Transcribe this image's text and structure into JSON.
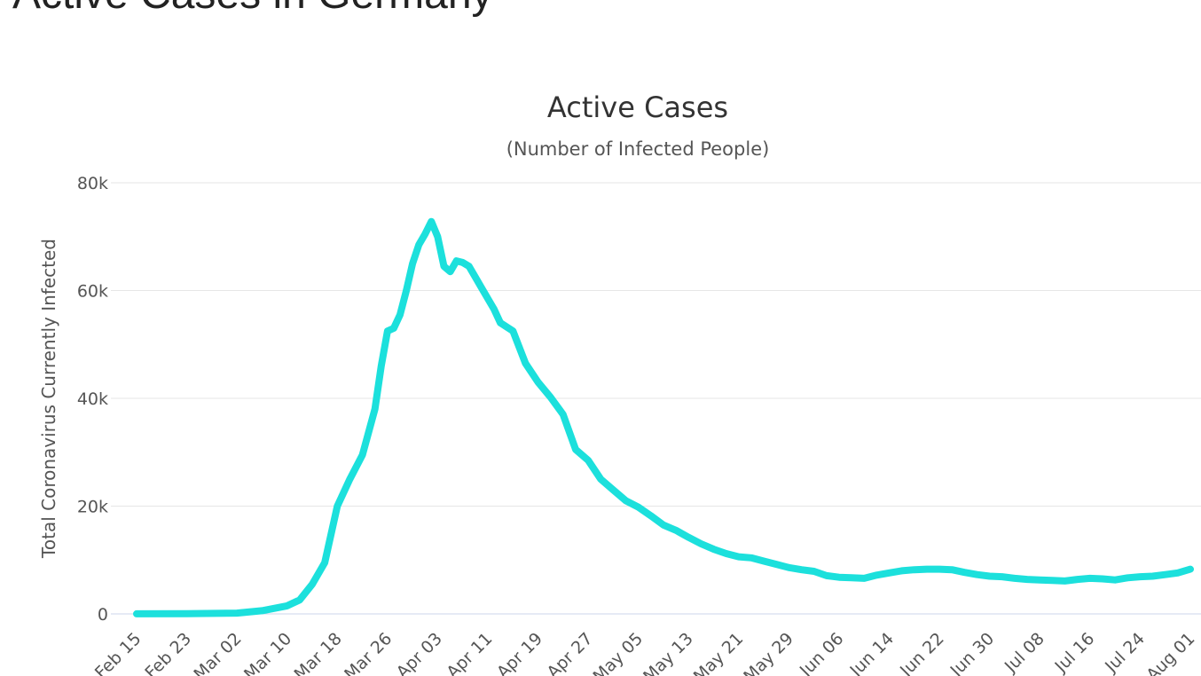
{
  "page": {
    "heading": "Active Cases in Germany"
  },
  "chart_data": {
    "type": "line",
    "title": "Active Cases",
    "subtitle": "(Number of Infected People)",
    "xlabel": "",
    "ylabel": "Total Coronavirus Currently Infected",
    "ylim": [
      0,
      80000
    ],
    "yticks": [
      0,
      20000,
      40000,
      60000,
      80000
    ],
    "ytick_labels": [
      "0",
      "20k",
      "40k",
      "60k",
      "80k"
    ],
    "xtick_labels": [
      "Feb 15",
      "Feb 23",
      "Mar 02",
      "Mar 10",
      "Mar 18",
      "Mar 26",
      "Apr 03",
      "Apr 11",
      "Apr 19",
      "Apr 27",
      "May 05",
      "May 13",
      "May 21",
      "May 29",
      "Jun 06",
      "Jun 14",
      "Jun 22",
      "Jun 30",
      "Jul 08",
      "Jul 16",
      "Jul 24",
      "Aug 01"
    ],
    "grid": true,
    "legend": false,
    "colors": {
      "line": "#1ce0dc",
      "grid": "#e6e6e6",
      "axis": "#ccd6eb"
    },
    "series": [
      {
        "x": [
          "Feb 15",
          "Feb 23",
          "Mar 02",
          "Mar 06",
          "Mar 10",
          "Mar 12",
          "Mar 14",
          "Mar 16",
          "Mar 18",
          "Mar 20",
          "Mar 22",
          "Mar 24",
          "Mar 25",
          "Mar 26",
          "Mar 27",
          "Mar 28",
          "Mar 29",
          "Mar 30",
          "Mar 31",
          "Apr 01",
          "Apr 02",
          "Apr 03",
          "Apr 04",
          "Apr 05",
          "Apr 06",
          "Apr 07",
          "Apr 08",
          "Apr 09",
          "Apr 10",
          "Apr 11",
          "Apr 12",
          "Apr 13",
          "Apr 15",
          "Apr 17",
          "Apr 19",
          "Apr 21",
          "Apr 23",
          "Apr 25",
          "Apr 27",
          "Apr 29",
          "May 01",
          "May 03",
          "May 05",
          "May 07",
          "May 09",
          "May 11",
          "May 13",
          "May 15",
          "May 17",
          "May 19",
          "May 21",
          "May 23",
          "May 25",
          "May 27",
          "May 29",
          "May 31",
          "Jun 02",
          "Jun 04",
          "Jun 06",
          "Jun 08",
          "Jun 10",
          "Jun 12",
          "Jun 14",
          "Jun 16",
          "Jun 18",
          "Jun 20",
          "Jun 22",
          "Jun 24",
          "Jun 26",
          "Jun 28",
          "Jun 30",
          "Jul 02",
          "Jul 04",
          "Jul 06",
          "Jul 08",
          "Jul 10",
          "Jul 12",
          "Jul 14",
          "Jul 16",
          "Jul 18",
          "Jul 20",
          "Jul 22",
          "Jul 24",
          "Jul 26",
          "Jul 28",
          "Jul 30",
          "Aug 01"
        ],
        "values": [
          16,
          30,
          150,
          600,
          1500,
          2600,
          5500,
          9500,
          20000,
          25000,
          29500,
          38000,
          46000,
          52500,
          53000,
          55500,
          60000,
          65000,
          68500,
          70500,
          72800,
          70000,
          64500,
          63500,
          65500,
          65200,
          64500,
          62500,
          60500,
          58500,
          56500,
          54000,
          52500,
          46500,
          43000,
          40200,
          37000,
          30500,
          28500,
          25000,
          23000,
          21000,
          19800,
          18200,
          16500,
          15500,
          14200,
          13000,
          12000,
          11200,
          10600,
          10400,
          9800,
          9200,
          8600,
          8200,
          7900,
          7100,
          6800,
          6700,
          6600,
          7200,
          7600,
          8000,
          8200,
          8300,
          8300,
          8200,
          7700,
          7300,
          7000,
          6900,
          6600,
          6400,
          6300,
          6200,
          6100,
          6400,
          6600,
          6500,
          6300,
          6700,
          6900,
          7000,
          7300,
          7600,
          8300
        ]
      }
    ]
  }
}
